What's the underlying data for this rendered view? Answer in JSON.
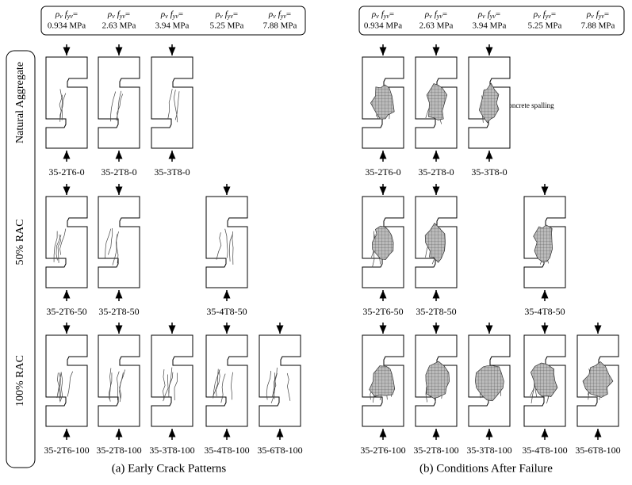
{
  "header_label": {
    "rho": "ρ",
    "rho_sub": "v",
    "f": "f",
    "f_sub": "yv",
    "equals": "="
  },
  "columns": [
    "0.934 MPa",
    "2.63 MPa",
    "3.94 MPa",
    "5.25 MPa",
    "7.88 MPa"
  ],
  "rows": [
    "Natural Aggregate",
    "50% RAC",
    "100% RAC"
  ],
  "panels": [
    {
      "caption": "(a) Early Crack Patterns",
      "specimens": [
        [
          "35-2T6-0",
          "35-2T8-0",
          "35-3T8-0",
          null,
          null
        ],
        [
          "35-2T6-50",
          "35-2T8-50",
          null,
          "35-4T8-50",
          null
        ],
        [
          "35-2T6-100",
          "35-2T8-100",
          "35-3T8-100",
          "35-4T8-100",
          "35-6T8-100"
        ]
      ]
    },
    {
      "caption": "(b) Conditions After Failure",
      "specimens": [
        [
          "35-2T6-0",
          "35-2T8-0",
          "35-3T8-0",
          null,
          null
        ],
        [
          "35-2T6-50",
          "35-2T8-50",
          null,
          "35-4T8-50",
          null
        ],
        [
          "35-2T6-100",
          "35-2T8-100",
          "35-3T8-100",
          "35-4T8-100",
          "35-6T8-100"
        ]
      ],
      "annotation": "concrete spalling"
    }
  ]
}
